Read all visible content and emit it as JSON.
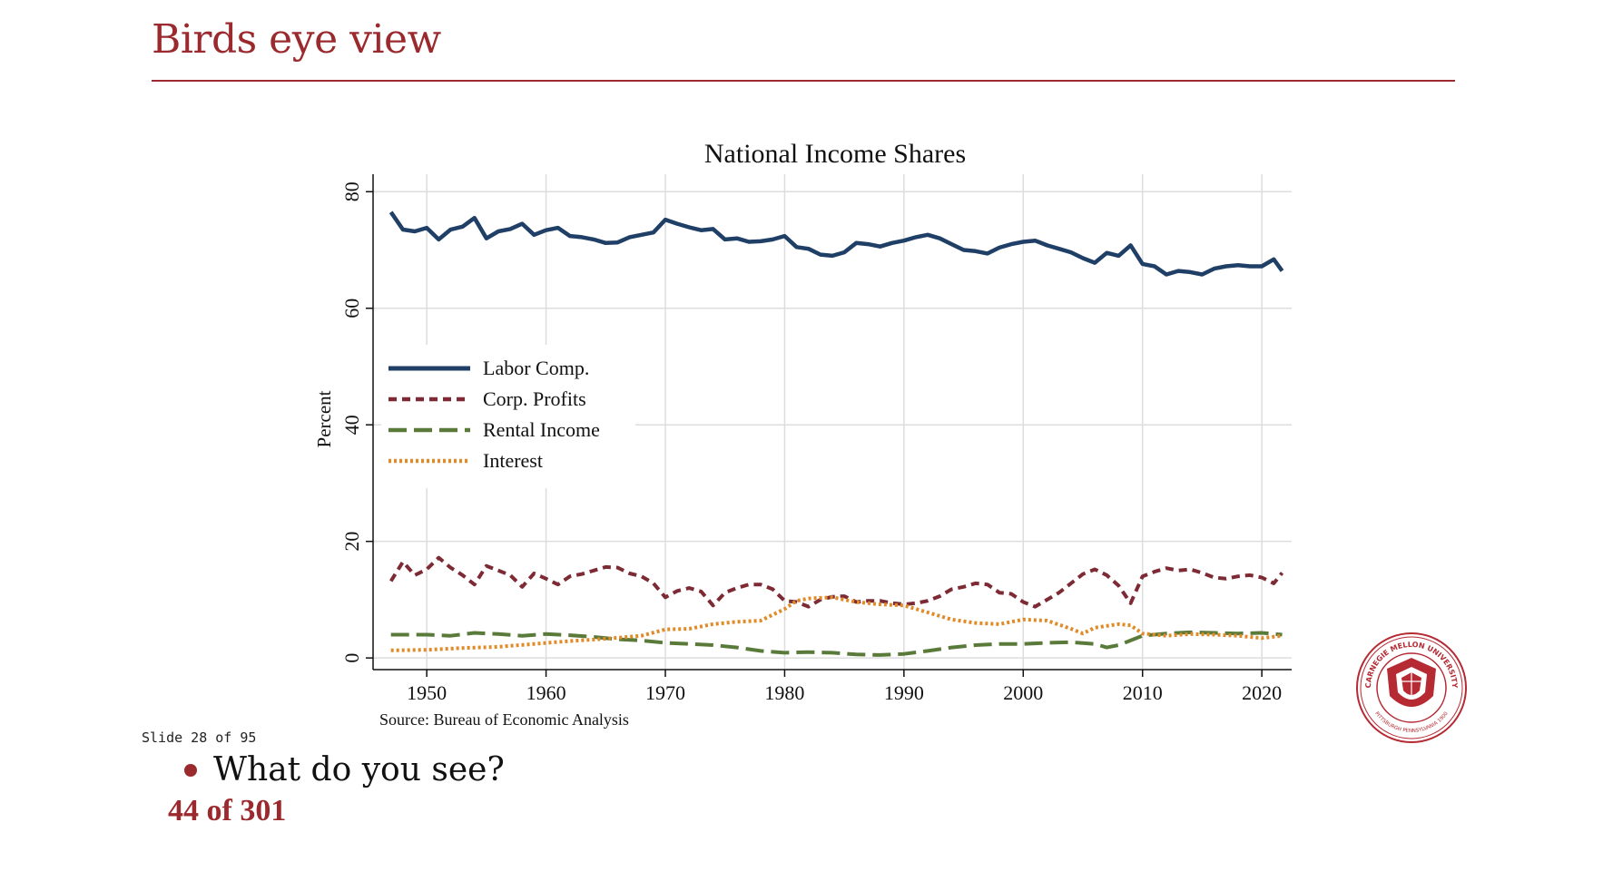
{
  "slide": {
    "title": "Birds eye view",
    "counter": "Slide 28 of 95",
    "bullet": "What do you see?",
    "page": "44 of 301",
    "accent_color": "#9b2a2e",
    "logo": {
      "name": "carnegie-mellon-seal",
      "text_top": "CARNEGIE MELLON UNIVERSITY",
      "text_bottom": "PITTSBURGH PENNSYLVANIA 1900"
    }
  },
  "chart_data": {
    "type": "line",
    "title": "National Income Shares",
    "xlabel": "",
    "ylabel": "Percent",
    "xlim": [
      1945.5,
      2022.5
    ],
    "ylim": [
      -2,
      83
    ],
    "x_ticks": [
      1950,
      1960,
      1970,
      1980,
      1990,
      2000,
      2010,
      2020
    ],
    "y_ticks": [
      0,
      20,
      40,
      60,
      80
    ],
    "grid": true,
    "legend_position": "middle-left",
    "source": "Source: Bureau of Economic Analysis",
    "series": [
      {
        "name": "Labor Comp.",
        "color": "#1f3f66",
        "style": "solid",
        "x": [
          1947,
          1948,
          1949,
          1950,
          1951,
          1952,
          1953,
          1954,
          1955,
          1956,
          1957,
          1958,
          1959,
          1960,
          1961,
          1962,
          1963,
          1964,
          1965,
          1966,
          1967,
          1968,
          1969,
          1970,
          1971,
          1972,
          1973,
          1974,
          1975,
          1976,
          1977,
          1978,
          1979,
          1980,
          1981,
          1982,
          1983,
          1984,
          1985,
          1986,
          1987,
          1988,
          1989,
          1990,
          1991,
          1992,
          1993,
          1994,
          1995,
          1996,
          1997,
          1998,
          1999,
          2000,
          2001,
          2002,
          2003,
          2004,
          2005,
          2006,
          2007,
          2008,
          2009,
          2010,
          2011,
          2012,
          2013,
          2014,
          2015,
          2016,
          2017,
          2018,
          2019,
          2020,
          2021,
          2021.7
        ],
        "values": [
          76.5,
          73.5,
          73.2,
          73.8,
          71.8,
          73.5,
          74.0,
          75.5,
          72.0,
          73.2,
          73.6,
          74.5,
          72.6,
          73.4,
          73.8,
          72.4,
          72.2,
          71.8,
          71.2,
          71.3,
          72.2,
          72.6,
          73.0,
          75.2,
          74.5,
          73.9,
          73.4,
          73.6,
          71.8,
          72.0,
          71.4,
          71.5,
          71.8,
          72.4,
          70.5,
          70.2,
          69.2,
          69.0,
          69.6,
          71.2,
          71.0,
          70.6,
          71.2,
          71.6,
          72.2,
          72.6,
          72.0,
          71.0,
          70.0,
          69.8,
          69.4,
          70.4,
          71.0,
          71.4,
          71.6,
          70.8,
          70.2,
          69.6,
          68.6,
          67.8,
          69.5,
          69.0,
          70.8,
          67.6,
          67.2,
          65.8,
          66.4,
          66.2,
          65.8,
          66.8,
          67.2,
          67.4,
          67.2,
          67.2,
          68.4,
          66.4
        ]
      },
      {
        "name": "Corp. Profits",
        "color": "#7d2a34",
        "style": "short-dash",
        "x": [
          1947,
          1948,
          1949,
          1950,
          1951,
          1952,
          1953,
          1954,
          1955,
          1956,
          1957,
          1958,
          1959,
          1960,
          1961,
          1962,
          1963,
          1964,
          1965,
          1966,
          1967,
          1968,
          1969,
          1970,
          1971,
          1972,
          1973,
          1974,
          1975,
          1976,
          1977,
          1978,
          1979,
          1980,
          1981,
          1982,
          1983,
          1984,
          1985,
          1986,
          1987,
          1988,
          1989,
          1990,
          1991,
          1992,
          1993,
          1994,
          1995,
          1996,
          1997,
          1998,
          1999,
          2000,
          2001,
          2002,
          2003,
          2004,
          2005,
          2006,
          2007,
          2008,
          2009,
          2010,
          2011,
          2012,
          2013,
          2014,
          2015,
          2016,
          2017,
          2018,
          2019,
          2020,
          2021,
          2021.7
        ],
        "values": [
          13.2,
          16.5,
          14.2,
          15.2,
          17.2,
          15.5,
          14.2,
          12.6,
          15.8,
          15.0,
          14.2,
          12.2,
          14.5,
          13.6,
          12.6,
          14.0,
          14.4,
          15.0,
          15.6,
          15.5,
          14.5,
          14.0,
          12.8,
          10.4,
          11.5,
          12.0,
          11.4,
          9.0,
          11.2,
          12.0,
          12.6,
          12.6,
          11.8,
          9.8,
          9.6,
          8.8,
          10.0,
          10.5,
          10.6,
          9.6,
          9.8,
          9.8,
          9.4,
          9.2,
          9.4,
          9.8,
          10.6,
          11.8,
          12.2,
          12.8,
          12.6,
          11.2,
          11.0,
          9.6,
          8.8,
          10.0,
          11.2,
          12.8,
          14.4,
          15.2,
          14.2,
          12.4,
          9.4,
          14.0,
          14.8,
          15.4,
          15.0,
          15.2,
          14.6,
          13.8,
          13.6,
          14.0,
          14.2,
          13.8,
          12.8,
          14.6
        ]
      },
      {
        "name": "Rental Income",
        "color": "#5a7a3a",
        "style": "long-dash",
        "x": [
          1947,
          1950,
          1952,
          1954,
          1956,
          1958,
          1960,
          1962,
          1964,
          1966,
          1968,
          1970,
          1972,
          1974,
          1976,
          1978,
          1980,
          1982,
          1984,
          1986,
          1988,
          1990,
          1992,
          1994,
          1996,
          1998,
          2000,
          2002,
          2004,
          2006,
          2007,
          2008,
          2010,
          2012,
          2014,
          2016,
          2018,
          2020,
          2021.7
        ],
        "values": [
          4.0,
          4.0,
          3.8,
          4.3,
          4.1,
          3.8,
          4.1,
          3.9,
          3.6,
          3.2,
          3.0,
          2.6,
          2.4,
          2.2,
          1.8,
          1.2,
          0.9,
          1.0,
          0.9,
          0.6,
          0.5,
          0.7,
          1.2,
          1.8,
          2.2,
          2.4,
          2.4,
          2.6,
          2.7,
          2.4,
          1.8,
          2.2,
          3.8,
          4.2,
          4.4,
          4.3,
          4.2,
          4.3,
          4.0
        ]
      },
      {
        "name": "Interest",
        "color": "#e08a28",
        "style": "dotted",
        "x": [
          1947,
          1950,
          1953,
          1956,
          1959,
          1962,
          1965,
          1968,
          1970,
          1972,
          1974,
          1976,
          1978,
          1980,
          1981,
          1982,
          1984,
          1986,
          1988,
          1990,
          1992,
          1994,
          1996,
          1998,
          2000,
          2002,
          2004,
          2005,
          2006,
          2008,
          2009,
          2010,
          2012,
          2014,
          2016,
          2018,
          2020,
          2021.7
        ],
        "values": [
          1.3,
          1.4,
          1.7,
          1.9,
          2.4,
          2.9,
          3.3,
          3.8,
          4.9,
          5.0,
          5.8,
          6.2,
          6.4,
          8.4,
          9.8,
          10.2,
          10.4,
          9.6,
          9.2,
          9.0,
          7.8,
          6.6,
          6.0,
          5.8,
          6.6,
          6.4,
          5.0,
          4.2,
          5.2,
          5.8,
          5.6,
          4.2,
          3.8,
          4.1,
          4.0,
          3.8,
          3.4,
          3.8
        ]
      }
    ]
  }
}
